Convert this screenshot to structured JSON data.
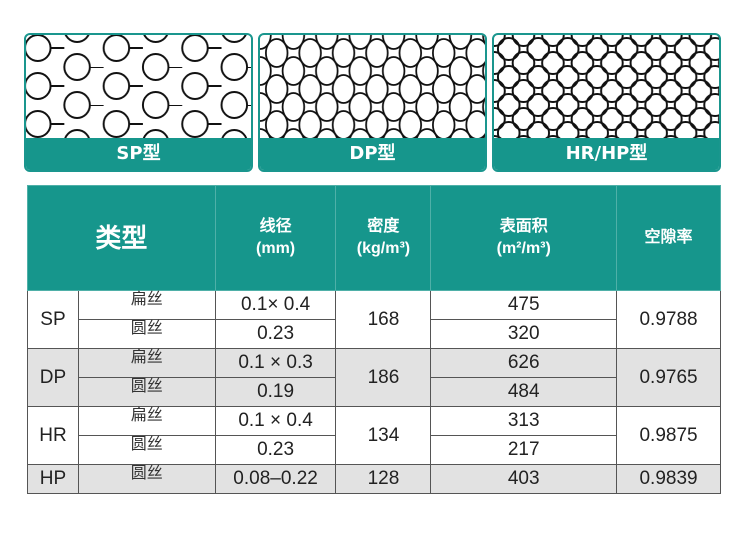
{
  "cards": [
    {
      "label": "SP型",
      "pattern": "wide-mesh"
    },
    {
      "label": "DP型",
      "pattern": "diamond-mesh"
    },
    {
      "label": "HR/HP型",
      "pattern": "dense-ring-mesh"
    }
  ],
  "colors": {
    "accent": "#16968c",
    "row_alt": "#e2e2e2"
  },
  "table": {
    "headers": {
      "type": "类型",
      "diameter": "线径",
      "diameter_unit": "(mm)",
      "density": "密度",
      "density_unit": "(kg/m³)",
      "surface": "表面积",
      "surface_unit": "(m²/m³)",
      "porosity": "空隙率"
    },
    "groups": [
      {
        "code": "SP",
        "density": "168",
        "porosity": "0.9788",
        "rows": [
          {
            "wire": "扁丝",
            "diameter": "0.1× 0.4",
            "surface": "475"
          },
          {
            "wire": "圆丝",
            "diameter": "0.23",
            "surface": "320"
          }
        ]
      },
      {
        "code": "DP",
        "density": "186",
        "porosity": "0.9765",
        "rows": [
          {
            "wire": "扁丝",
            "diameter": "0.1 × 0.3",
            "surface": "626"
          },
          {
            "wire": "圆丝",
            "diameter": "0.19",
            "surface": "484"
          }
        ]
      },
      {
        "code": "HR",
        "density": "134",
        "porosity": "0.9875",
        "rows": [
          {
            "wire": "扁丝",
            "diameter": "0.1 × 0.4",
            "surface": "313"
          },
          {
            "wire": "圆丝",
            "diameter": "0.23",
            "surface": "217"
          }
        ]
      },
      {
        "code": "HP",
        "density": "128",
        "porosity": "0.9839",
        "rows": [
          {
            "wire": "圆丝",
            "diameter": "0.08–0.22",
            "surface": "403"
          }
        ]
      }
    ]
  }
}
